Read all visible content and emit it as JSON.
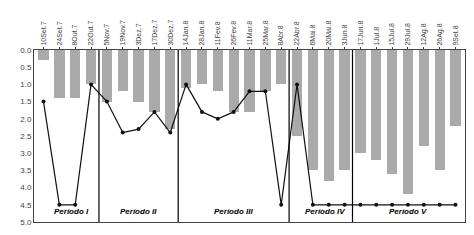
{
  "chart_data": {
    "type": "bar",
    "categories": [
      "10Set.7",
      "24Set.7",
      "8Out.7",
      "22Out.7",
      "5Nov.7",
      "19Nov.7",
      "3Dez.7",
      "17Dez.7",
      "30Dez.7",
      "14Jan.8",
      "28Jan.8",
      "11Fev.8",
      "26Fev.8",
      "11Mar.8",
      "25Mar.8",
      "8Abr.8",
      "22Abr.8",
      "6Mai.8",
      "20Mai.8",
      "3Jun.8",
      "17Jun.8",
      "1Jul.8",
      "15Jul.8",
      "29Jul.8",
      "12Ag.8",
      "26Ag.8",
      "9Set.8"
    ],
    "series": [
      {
        "type": "bar",
        "color": "#aaaaaa",
        "values": [
          0.3,
          1.4,
          1.4,
          1.0,
          1.5,
          1.2,
          1.5,
          1.8,
          2.3,
          1.1,
          1.0,
          1.2,
          1.8,
          1.8,
          1.2,
          1.0,
          2.5,
          3.5,
          3.8,
          3.5,
          3.0,
          3.2,
          3.6,
          4.2,
          2.8,
          3.5,
          2.2
        ]
      },
      {
        "type": "line",
        "color": "#111111",
        "marker": "circle",
        "values": [
          1.5,
          4.5,
          4.5,
          1.0,
          1.5,
          2.4,
          2.3,
          1.8,
          2.4,
          1.0,
          1.8,
          2.0,
          1.8,
          1.2,
          1.2,
          4.5,
          1.0,
          4.5,
          4.5,
          4.5,
          4.5,
          4.5,
          4.5,
          4.5,
          4.5,
          4.5,
          4.5
        ]
      }
    ],
    "ylim": [
      5,
      0
    ],
    "yticks": [
      {
        "value": 0,
        "label": "0.0"
      },
      0.5,
      {
        "value": 1,
        "label": "1.0"
      },
      1.5,
      {
        "value": 2,
        "label": "2.0"
      },
      2.5,
      {
        "value": 3,
        "label": "3.0"
      },
      3.5,
      {
        "value": 4,
        "label": "4.0"
      },
      4.5,
      {
        "value": 5,
        "label": "5.0"
      }
    ],
    "grid": false,
    "dividers": {
      "x": [
        3.5,
        8.5,
        15.5,
        19.5
      ],
      "color": "#000000"
    },
    "annotations": [
      {
        "text": "Período I",
        "x": 1.75,
        "y": 4.88
      },
      {
        "text": "Período II",
        "x": 6.0,
        "y": 4.88
      },
      {
        "text": "Período III",
        "x": 12.0,
        "y": 4.88
      },
      {
        "text": "Período IV",
        "x": 17.75,
        "y": 4.88
      },
      {
        "text": "Período V",
        "x": 23.0,
        "y": 4.88
      }
    ]
  }
}
